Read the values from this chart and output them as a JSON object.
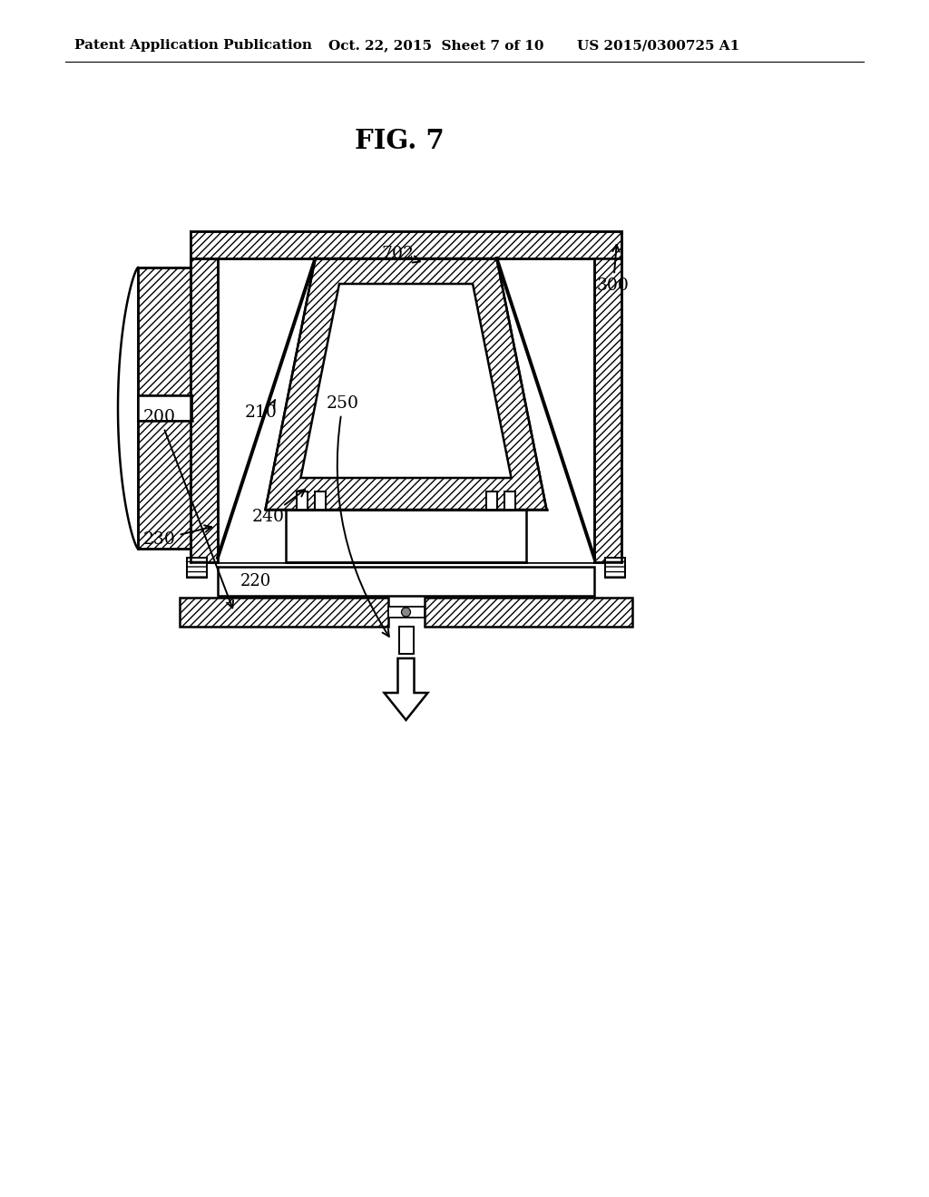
{
  "header_left": "Patent Application Publication",
  "header_mid": "Oct. 22, 2015  Sheet 7 of 10",
  "header_right": "US 2015/0300725 A1",
  "fig_title": "FIG. 7",
  "bg_color": "#ffffff",
  "line_color": "#000000",
  "label_300": "300",
  "label_702": "702",
  "label_210": "210",
  "label_230": "230",
  "label_240": "240",
  "label_220": "220",
  "label_200": "200",
  "label_250": "250"
}
